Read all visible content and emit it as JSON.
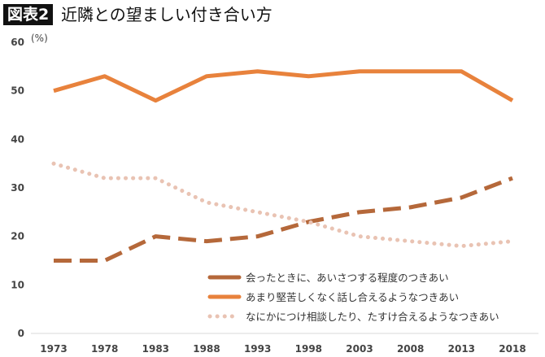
{
  "header": {
    "badge": "図表2",
    "title": "近隣との望ましい付き合い方"
  },
  "chart_data": {
    "type": "line",
    "title": "近隣との望ましい付き合い方",
    "ylabel": "(%)",
    "xlabel": "",
    "ylim": [
      0,
      60
    ],
    "yticks": [
      0,
      10,
      20,
      30,
      40,
      50,
      60
    ],
    "categories": [
      "1973",
      "1978",
      "1983",
      "1988",
      "1993",
      "1998",
      "2003",
      "2008",
      "2013",
      "2018"
    ],
    "grid": false,
    "legend": "bottom-right",
    "series": [
      {
        "name": "会ったときに、あいさつする程度のつきあい",
        "style": "dashed",
        "color": "#B5683A",
        "values": [
          15,
          15,
          20,
          19,
          20,
          23,
          25,
          26,
          28,
          32
        ]
      },
      {
        "name": "あまり堅苦しくなく話し合えるようなつきあい",
        "style": "solid",
        "color": "#E8823C",
        "values": [
          50,
          53,
          48,
          53,
          54,
          53,
          54,
          54,
          54,
          48
        ]
      },
      {
        "name": "なにかにつけ相談したり、たすけ合えるようなつきあい",
        "style": "dotted",
        "color": "#E9C3B3",
        "values": [
          35,
          32,
          32,
          27,
          25,
          23,
          20,
          19,
          18,
          19
        ]
      }
    ]
  }
}
